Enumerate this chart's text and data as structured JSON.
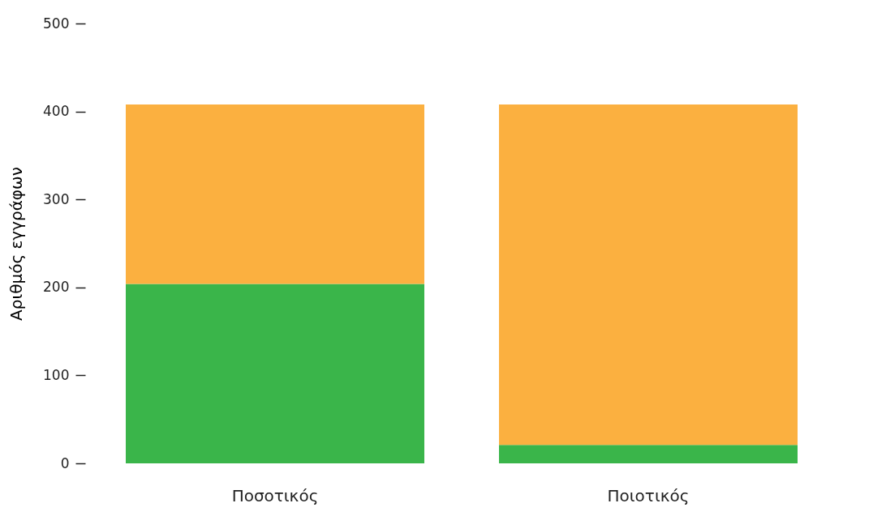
{
  "chart_data": {
    "type": "bar",
    "stacked": true,
    "ylabel": "Αριθμός εγγράφων",
    "categories": [
      "Ποσοτικός",
      "Ποιοτικός"
    ],
    "series": [
      {
        "color": "#3ab54a",
        "values": [
          204,
          21
        ]
      },
      {
        "color": "#fbb040",
        "values": [
          204,
          387
        ]
      }
    ],
    "ylim": [
      0,
      500
    ],
    "yticks": [
      0,
      100,
      200,
      300,
      400,
      500
    ],
    "grid": false,
    "legend": false
  }
}
